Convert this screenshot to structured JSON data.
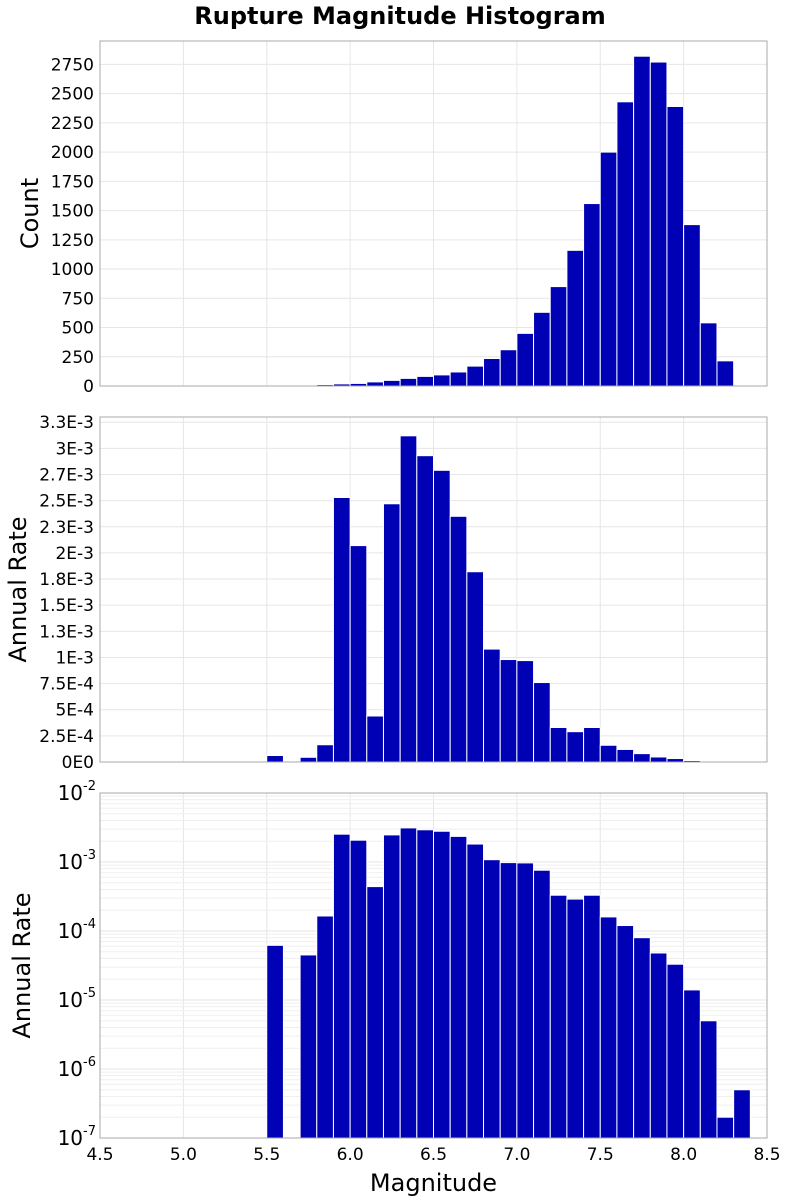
{
  "figure": {
    "title": "Rupture Magnitude Histogram"
  },
  "colors": {
    "bar": "#0000b4"
  },
  "chart_data": [
    {
      "type": "bar",
      "panel": "top",
      "x": [
        5.55,
        5.65,
        5.75,
        5.85,
        5.95,
        6.05,
        6.15,
        6.25,
        6.35,
        6.45,
        6.55,
        6.65,
        6.75,
        6.85,
        6.95,
        7.05,
        7.15,
        7.25,
        7.35,
        7.45,
        7.55,
        7.65,
        7.75,
        7.85,
        7.95,
        8.05,
        8.15,
        8.25
      ],
      "values": [
        5,
        3,
        8,
        12,
        18,
        22,
        35,
        48,
        65,
        82,
        95,
        120,
        170,
        235,
        310,
        450,
        630,
        850,
        1160,
        1560,
        2000,
        2430,
        2820,
        2770,
        2390,
        1380,
        540,
        215
      ],
      "bin_width": 0.1,
      "xlim": [
        4.5,
        8.5
      ],
      "ylim": [
        0,
        2950
      ],
      "ylabel": "Count",
      "yticks": [
        0,
        250,
        500,
        750,
        1000,
        1250,
        1500,
        1750,
        2000,
        2250,
        2500,
        2750
      ],
      "ytick_labels": [
        "0",
        "250",
        "500",
        "750",
        "1000",
        "1250",
        "1500",
        "1750",
        "2000",
        "2250",
        "2500",
        "2750"
      ],
      "grid": true
    },
    {
      "type": "bar",
      "panel": "middle",
      "x": [
        5.55,
        5.65,
        5.75,
        5.85,
        5.95,
        6.05,
        6.15,
        6.25,
        6.35,
        6.45,
        6.55,
        6.65,
        6.75,
        6.85,
        6.95,
        7.05,
        7.15,
        7.25,
        7.35,
        7.45,
        7.55,
        7.65,
        7.75,
        7.85,
        7.95,
        8.05,
        8.15,
        8.25,
        8.35
      ],
      "values": [
        6.2e-05,
        0,
        4.5e-05,
        0.000165,
        0.00253,
        0.00207,
        0.00044,
        0.00247,
        0.00312,
        0.00293,
        0.00279,
        0.00235,
        0.00182,
        0.00108,
        0.00098,
        0.00097,
        0.00076,
        0.00033,
        0.00029,
        0.00033,
        0.00016,
        0.00012,
        8e-05,
        4.8e-05,
        3.3e-05,
        1.4e-05,
        5e-06,
        2e-07,
        5e-07
      ],
      "bin_width": 0.1,
      "xlim": [
        4.5,
        8.5
      ],
      "ylim": [
        0,
        0.0033
      ],
      "ylabel": "Annual Rate",
      "yticks": [
        0,
        0.00025,
        0.0005,
        0.00075,
        0.001,
        0.00125,
        0.0015,
        0.00175,
        0.002,
        0.00225,
        0.0025,
        0.00275,
        0.003,
        0.00325
      ],
      "ytick_labels": [
        "0E0",
        "2.5E-4",
        "5E-4",
        "7.5E-4",
        "1E-3",
        "1.3E-3",
        "1.5E-3",
        "1.8E-3",
        "2E-3",
        "2.3E-3",
        "2.5E-3",
        "2.7E-3",
        "3E-3",
        "3.3E-3"
      ],
      "grid": true
    },
    {
      "type": "bar",
      "panel": "bottom",
      "yscale": "log",
      "x": [
        5.55,
        5.65,
        5.75,
        5.85,
        5.95,
        6.05,
        6.15,
        6.25,
        6.35,
        6.45,
        6.55,
        6.65,
        6.75,
        6.85,
        6.95,
        7.05,
        7.15,
        7.25,
        7.35,
        7.45,
        7.55,
        7.65,
        7.75,
        7.85,
        7.95,
        8.05,
        8.15,
        8.25,
        8.35
      ],
      "values": [
        6.2e-05,
        0,
        4.5e-05,
        0.000165,
        0.00253,
        0.00207,
        0.00044,
        0.00247,
        0.00312,
        0.00293,
        0.00279,
        0.00235,
        0.00182,
        0.00108,
        0.00098,
        0.00097,
        0.00076,
        0.00033,
        0.00029,
        0.00033,
        0.00016,
        0.00012,
        8e-05,
        4.8e-05,
        3.3e-05,
        1.4e-05,
        5e-06,
        2e-07,
        5e-07
      ],
      "bin_width": 0.1,
      "xlim": [
        4.5,
        8.5
      ],
      "ylim": [
        1e-07,
        0.01
      ],
      "ylabel": "Annual Rate",
      "xlabel": "Magnitude",
      "ytick_exponents": [
        "-7",
        "-6",
        "-5",
        "-4",
        "-3",
        "-2"
      ],
      "ytick_base": "10",
      "xticks": [
        4.5,
        5.0,
        5.5,
        6.0,
        6.5,
        7.0,
        7.5,
        8.0,
        8.5
      ],
      "xtick_labels": [
        "4.5",
        "5.0",
        "5.5",
        "6.0",
        "6.5",
        "7.0",
        "7.5",
        "8.0",
        "8.5"
      ],
      "grid": true
    }
  ]
}
